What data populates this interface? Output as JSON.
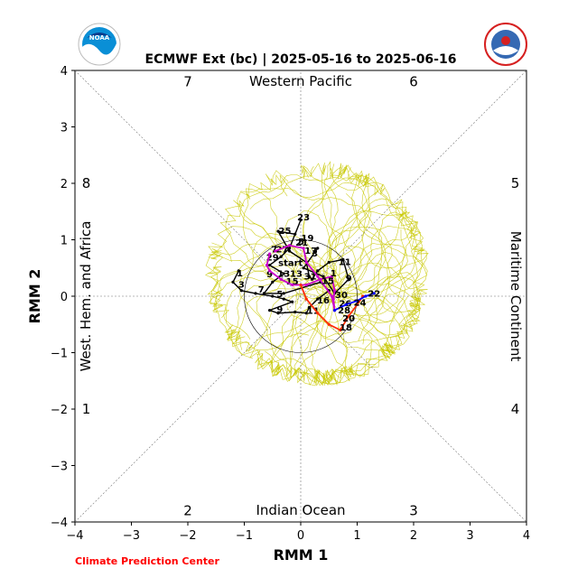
{
  "chart_data": {
    "type": "line",
    "title": "ECMWF Ext (bc) | 2025-05-16 to 2025-06-16",
    "xlabel": "RMM 1",
    "ylabel": "RMM 2",
    "xlim": [
      -4,
      4
    ],
    "ylim": [
      -4,
      4
    ],
    "xticks": [
      "−4",
      "−3",
      "−2",
      "−1",
      "0",
      "1",
      "2",
      "3",
      "4"
    ],
    "yticks": [
      "−4",
      "−3",
      "−2",
      "−1",
      "0",
      "1",
      "2",
      "3",
      "4"
    ],
    "phase_numbers": [
      "1",
      "2",
      "3",
      "4",
      "5",
      "6",
      "7",
      "8"
    ],
    "regions": {
      "top": "Western Pacific",
      "bottom": "Indian Ocean",
      "left": "West. Hem. and Africa",
      "right": "Maritime Continent"
    },
    "start_label": "start",
    "credit": "Climate Prediction Center",
    "colors": {
      "observed": "#000000",
      "ensemble": "#c8c800",
      "forecast_week1": "#cc00cc",
      "forecast_week2": "#ff2a00",
      "forecast_week3": "#0000ff",
      "credit": "#ff0000"
    },
    "series": [
      {
        "name": "observed",
        "points": [
          [
            -1.1,
            0.45
          ],
          [
            -1.2,
            0.25
          ],
          [
            -1.05,
            0.1
          ],
          [
            -0.8,
            0.05
          ],
          [
            -0.5,
            0.0
          ],
          [
            -0.3,
            -0.05
          ],
          [
            -0.15,
            -0.1
          ],
          [
            -0.55,
            -0.25
          ],
          [
            -0.4,
            -0.3
          ],
          [
            -0.1,
            -0.28
          ],
          [
            0.1,
            -0.3
          ],
          [
            0.15,
            -0.2
          ],
          [
            0.3,
            -0.05
          ],
          [
            0.5,
            0.1
          ],
          [
            0.35,
            0.25
          ],
          [
            -0.3,
            0.05
          ],
          [
            -0.65,
            0.05
          ],
          [
            -0.5,
            0.25
          ],
          [
            -0.3,
            0.4
          ],
          [
            -0.55,
            0.55
          ],
          [
            -0.35,
            0.7
          ],
          [
            -0.2,
            0.85
          ],
          [
            0.0,
            1.35
          ],
          [
            -0.1,
            1.1
          ],
          [
            -0.4,
            1.15
          ],
          [
            -0.2,
            0.8
          ],
          [
            0.1,
            0.6
          ],
          [
            0.15,
            0.35
          ],
          [
            0.2,
            0.3
          ],
          [
            0.3,
            0.45
          ],
          [
            0.5,
            0.6
          ],
          [
            0.75,
            0.65
          ],
          [
            0.85,
            0.3
          ],
          [
            0.6,
            0.05
          ],
          [
            0.4,
            0.35
          ],
          [
            0.05,
            0.5
          ],
          [
            0.3,
            0.85
          ]
        ],
        "labels": [
          {
            "t": "1",
            "x": -1.08,
            "y": 0.42
          },
          {
            "t": "3",
            "x": -1.05,
            "y": 0.22
          },
          {
            "t": "5",
            "x": -0.37,
            "y": 0.05
          },
          {
            "t": "7",
            "x": -0.7,
            "y": 0.13
          },
          {
            "t": "9",
            "x": -0.37,
            "y": -0.22
          },
          {
            "t": "11",
            "x": 0.22,
            "y": -0.25
          },
          {
            "t": "13",
            "x": -0.3,
            "y": 0.41
          },
          {
            "t": "15",
            "x": -0.15,
            "y": 0.27
          },
          {
            "t": "17",
            "x": 0.18,
            "y": 0.82
          },
          {
            "t": "19",
            "x": 0.12,
            "y": 1.04
          },
          {
            "t": "21",
            "x": 0.02,
            "y": 0.96
          },
          {
            "t": "23",
            "x": 0.05,
            "y": 1.41
          },
          {
            "t": "25",
            "x": -0.28,
            "y": 1.17
          },
          {
            "t": "27",
            "x": -0.33,
            "y": 0.84
          },
          {
            "t": "29",
            "x": -0.5,
            "y": 0.7
          },
          {
            "t": "31",
            "x": 0.17,
            "y": 0.36
          },
          {
            "t": "3",
            "x": 0.25,
            "y": 0.77
          },
          {
            "t": "5",
            "x": 0.01,
            "y": 0.98
          },
          {
            "t": "7",
            "x": -0.47,
            "y": 0.84
          },
          {
            "t": "9",
            "x": -0.55,
            "y": 0.4
          },
          {
            "t": "11",
            "x": 0.78,
            "y": 0.62
          },
          {
            "t": "13",
            "x": -0.08,
            "y": 0.41
          }
        ]
      },
      {
        "name": "forecast_week1",
        "points": [
          [
            -0.55,
            0.75
          ],
          [
            -0.6,
            0.55
          ],
          [
            -0.55,
            0.45
          ],
          [
            -0.35,
            0.3
          ],
          [
            -0.15,
            0.2
          ],
          [
            0.1,
            0.2
          ],
          [
            0.35,
            0.3
          ],
          [
            0.55,
            0.35
          ],
          [
            0.6,
            0.1
          ],
          [
            0.58,
            -0.05
          ],
          [
            0.6,
            -0.25
          ],
          [
            0.55,
            0.0
          ],
          [
            0.3,
            0.35
          ],
          [
            0.1,
            0.6
          ],
          [
            0.05,
            0.85
          ],
          [
            -0.2,
            0.9
          ],
          [
            -0.45,
            0.8
          ]
        ],
        "labels": [
          {
            "t": "1",
            "x": 0.58,
            "y": 0.42
          },
          {
            "t": "9",
            "x": 0.85,
            "y": 0.33
          },
          {
            "t": "15",
            "x": 0.48,
            "y": 0.28
          },
          {
            "t": "16",
            "x": 0.4,
            "y": -0.06
          },
          {
            "t": "26",
            "x": 0.79,
            "y": -0.12
          },
          {
            "t": "30",
            "x": 0.72,
            "y": 0.03
          }
        ]
      },
      {
        "name": "forecast_week2",
        "points": [
          [
            0.0,
            0.2
          ],
          [
            0.1,
            -0.05
          ],
          [
            0.3,
            -0.3
          ],
          [
            0.5,
            -0.5
          ],
          [
            0.7,
            -0.6
          ],
          [
            0.85,
            -0.35
          ],
          [
            1.0,
            -0.15
          ],
          [
            1.1,
            0.0
          ]
        ],
        "labels": [
          {
            "t": "18",
            "x": 0.8,
            "y": -0.54
          },
          {
            "t": "20",
            "x": 0.85,
            "y": -0.38
          }
        ]
      },
      {
        "name": "forecast_week3",
        "points": [
          [
            0.6,
            -0.25
          ],
          [
            0.8,
            -0.15
          ],
          [
            1.0,
            -0.08
          ],
          [
            1.15,
            0.0
          ],
          [
            1.3,
            0.05
          ]
        ],
        "labels": [
          {
            "t": "22",
            "x": 1.3,
            "y": 0.06
          },
          {
            "t": "24",
            "x": 1.05,
            "y": -0.1
          },
          {
            "t": "28",
            "x": 0.77,
            "y": -0.24
          }
        ]
      }
    ]
  }
}
